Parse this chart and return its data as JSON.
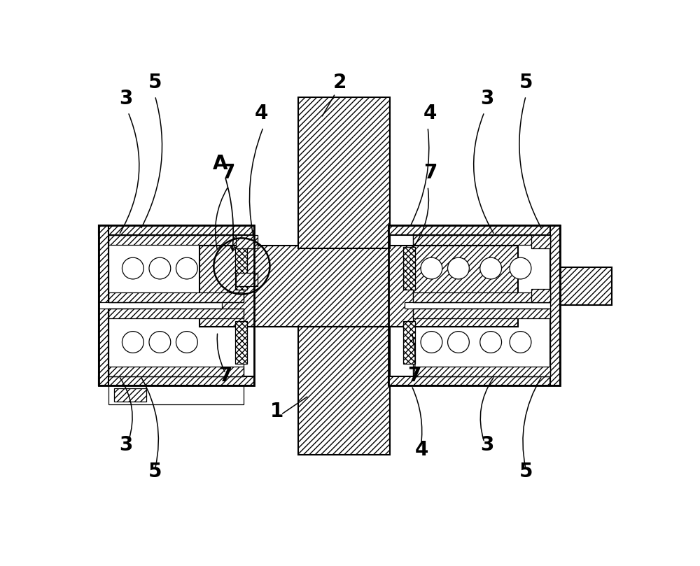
{
  "bg_color": "#ffffff",
  "line_color": "#000000",
  "fig_w": 10.0,
  "fig_h": 8.09,
  "dpi": 100,
  "label_fs": 20,
  "lw_main": 1.5,
  "lw_thin": 0.9
}
